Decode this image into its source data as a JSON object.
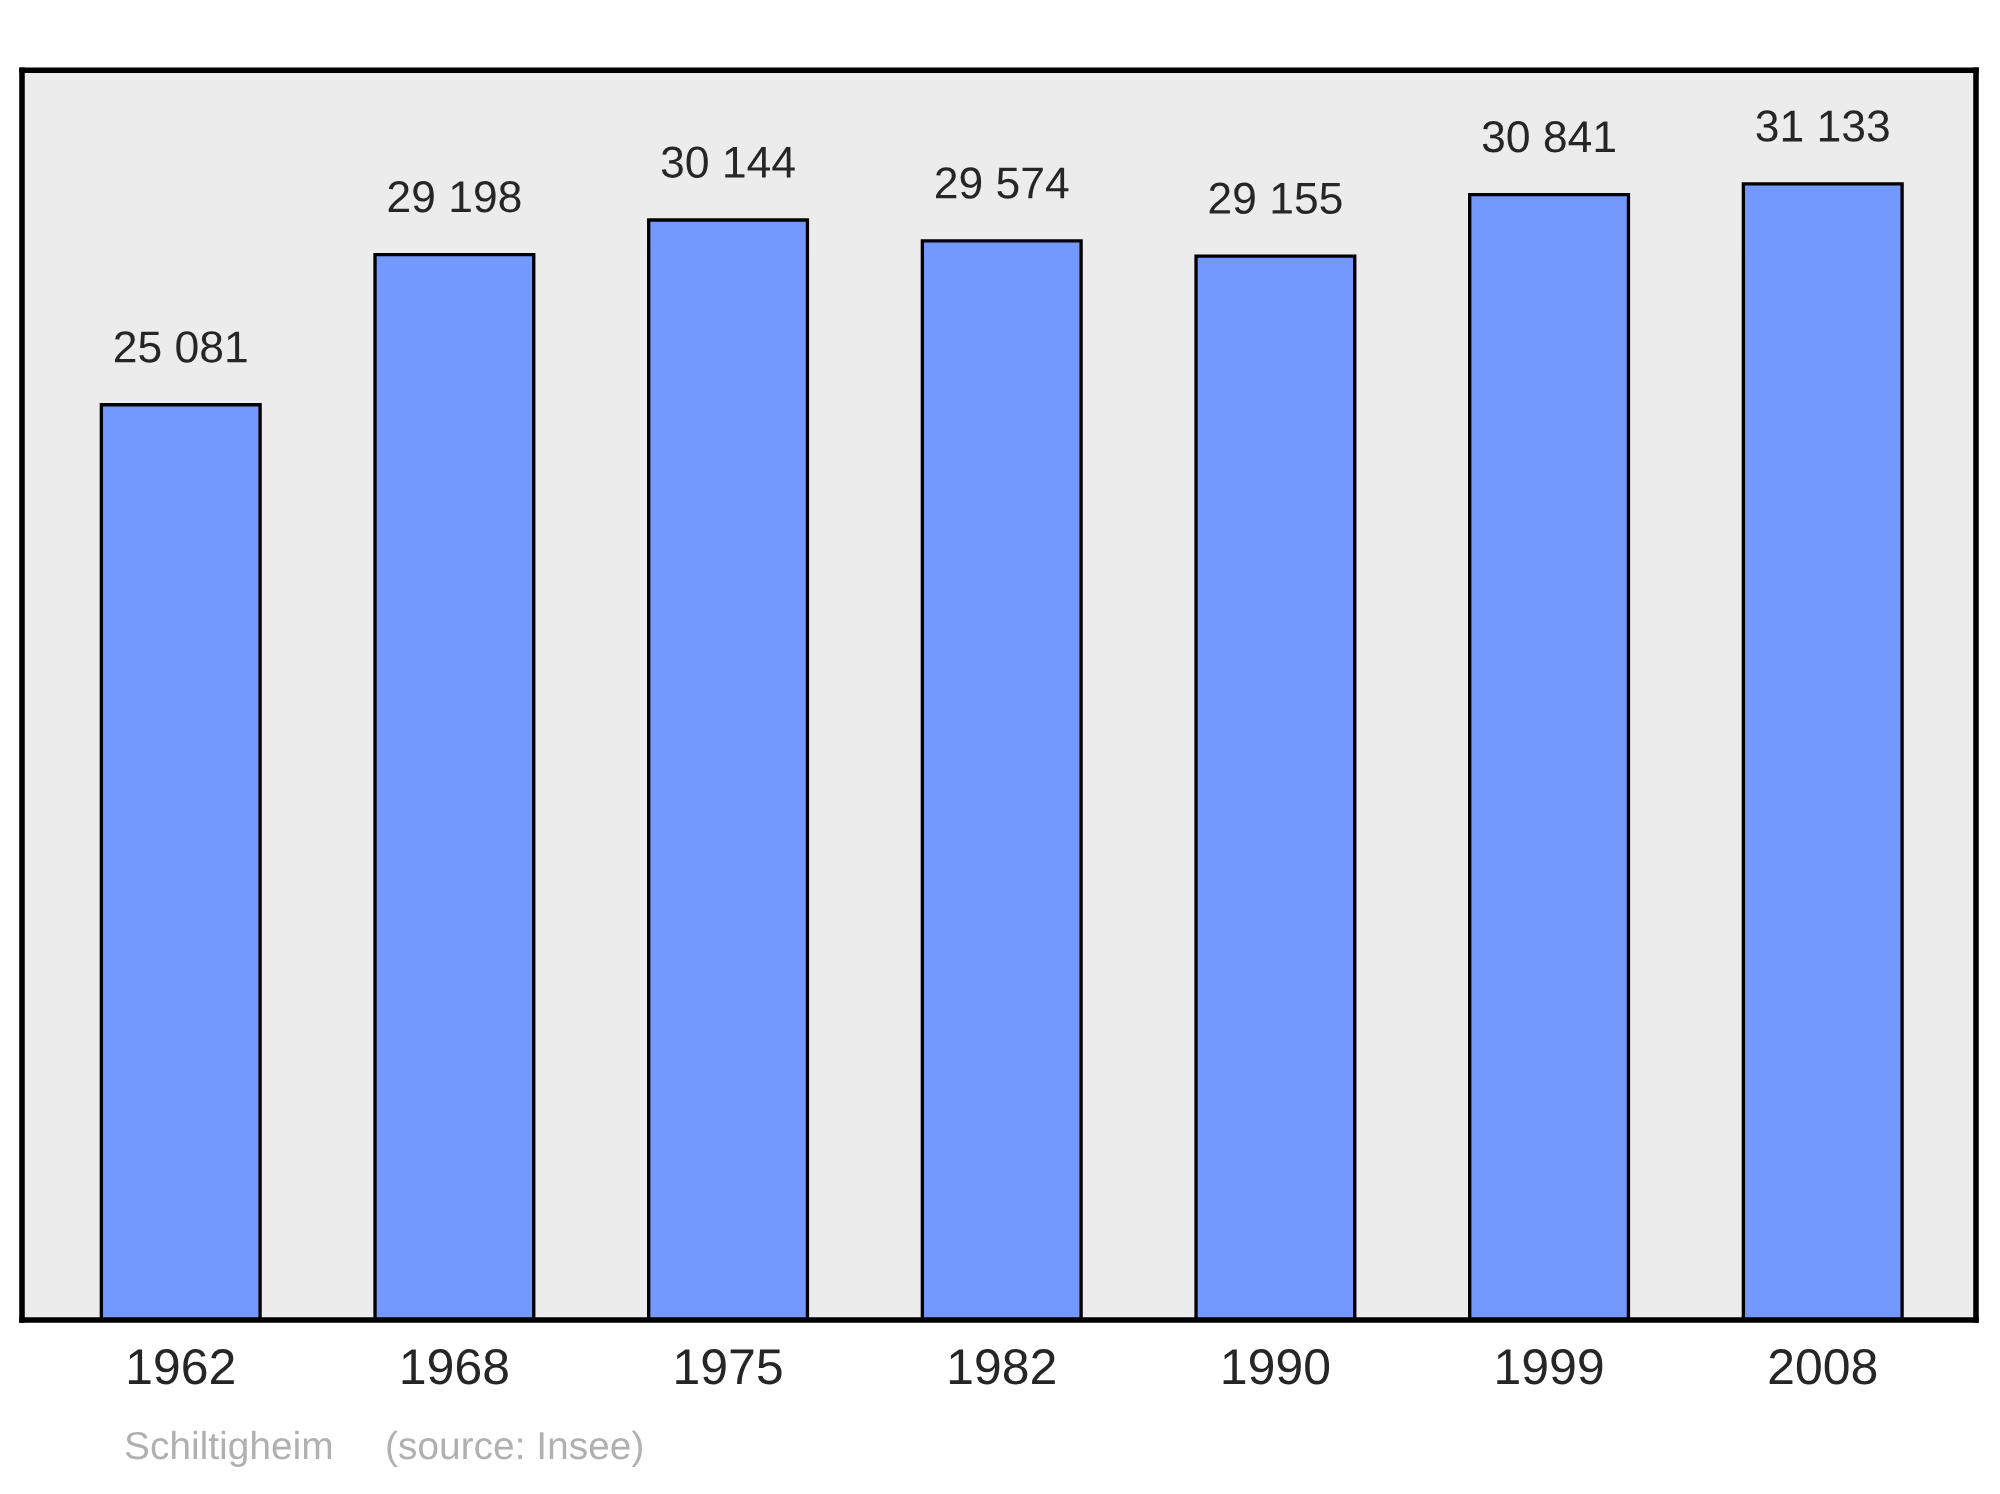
{
  "chart_data": {
    "type": "bar",
    "categories": [
      "1962",
      "1968",
      "1975",
      "1982",
      "1990",
      "1999",
      "2008"
    ],
    "values": [
      25081,
      29198,
      30144,
      29574,
      29155,
      30841,
      31133
    ],
    "value_labels": [
      "25 081",
      "29 198",
      "30 144",
      "29 574",
      "29 155",
      "30 841",
      "31 133"
    ],
    "color": "#7399ff",
    "ylim": [
      0,
      34250
    ],
    "tick_labels": "x",
    "grid": false,
    "legend": false,
    "annotations": [
      "Schiltigheim",
      "(source: Insee)"
    ]
  }
}
